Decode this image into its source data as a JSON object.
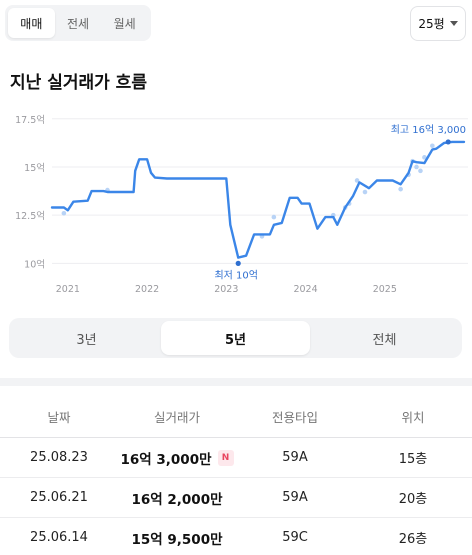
{
  "deal_tabs": [
    {
      "label": "매매",
      "active": true
    },
    {
      "label": "전세",
      "active": false
    },
    {
      "label": "월세",
      "active": false
    }
  ],
  "size_select": {
    "value": "25평"
  },
  "section_title": "지난 실거래가 흐름",
  "chart_data": {
    "type": "line",
    "x_unit": "year",
    "y_unit": "억",
    "y_ticks": [
      {
        "value": 10,
        "label": "10억"
      },
      {
        "value": 12.5,
        "label": "12.5억"
      },
      {
        "value": 15,
        "label": "15억"
      },
      {
        "value": 17.5,
        "label": "17.5억"
      }
    ],
    "x_ticks": [
      {
        "value": 2021,
        "label": "2021"
      },
      {
        "value": 2022,
        "label": "2022"
      },
      {
        "value": 2023,
        "label": "2023"
      },
      {
        "value": 2024,
        "label": "2024"
      },
      {
        "value": 2025,
        "label": "2025"
      }
    ],
    "x_range": [
      2020.8,
      2026.05
    ],
    "y_range": [
      9.5,
      17.8
    ],
    "line_color": "#3b86e8",
    "scatter_color": "#b8d3f6",
    "series": [
      {
        "points": [
          [
            2020.8,
            12.9
          ],
          [
            2020.95,
            12.9
          ],
          [
            2021.0,
            12.75
          ],
          [
            2021.07,
            13.2
          ],
          [
            2021.25,
            13.25
          ],
          [
            2021.3,
            13.75
          ],
          [
            2021.45,
            13.75
          ],
          [
            2021.5,
            13.7
          ],
          [
            2021.83,
            13.7
          ],
          [
            2021.85,
            14.8
          ],
          [
            2021.9,
            15.4
          ],
          [
            2022.0,
            15.4
          ],
          [
            2022.05,
            14.7
          ],
          [
            2022.1,
            14.45
          ],
          [
            2022.25,
            14.4
          ],
          [
            2023.0,
            14.4
          ],
          [
            2023.05,
            12.0
          ],
          [
            2023.15,
            10.3
          ],
          [
            2023.25,
            10.4
          ],
          [
            2023.35,
            11.5
          ],
          [
            2023.5,
            11.5
          ],
          [
            2023.55,
            11.5
          ],
          [
            2023.6,
            12.0
          ],
          [
            2023.7,
            12.1
          ],
          [
            2023.8,
            13.4
          ],
          [
            2023.9,
            13.4
          ],
          [
            2023.95,
            13.1
          ],
          [
            2024.05,
            13.1
          ],
          [
            2024.15,
            11.8
          ],
          [
            2024.25,
            12.4
          ],
          [
            2024.35,
            12.4
          ],
          [
            2024.4,
            12.0
          ],
          [
            2024.5,
            12.9
          ],
          [
            2024.6,
            13.5
          ],
          [
            2024.68,
            14.2
          ],
          [
            2024.8,
            13.9
          ],
          [
            2024.9,
            14.3
          ],
          [
            2025.1,
            14.3
          ],
          [
            2025.2,
            14.1
          ],
          [
            2025.3,
            14.7
          ],
          [
            2025.35,
            15.3
          ],
          [
            2025.4,
            15.25
          ],
          [
            2025.5,
            15.2
          ],
          [
            2025.6,
            15.9
          ],
          [
            2025.65,
            15.95
          ],
          [
            2025.75,
            16.25
          ],
          [
            2025.85,
            16.3
          ],
          [
            2026.0,
            16.3
          ]
        ]
      }
    ],
    "scatter": [
      [
        2020.95,
        12.6
      ],
      [
        2021.5,
        13.8
      ],
      [
        2023.45,
        11.4
      ],
      [
        2023.6,
        12.4
      ],
      [
        2024.35,
        12.5
      ],
      [
        2024.5,
        12.9
      ],
      [
        2024.55,
        13.1
      ],
      [
        2024.65,
        14.3
      ],
      [
        2024.75,
        13.7
      ],
      [
        2025.2,
        13.85
      ],
      [
        2025.3,
        14.6
      ],
      [
        2025.35,
        15.3
      ],
      [
        2025.4,
        15.0
      ],
      [
        2025.45,
        14.8
      ],
      [
        2025.5,
        15.5
      ],
      [
        2025.6,
        16.1
      ]
    ],
    "annotations": {
      "min": {
        "label": "최저 10억",
        "x": 2023.15,
        "y": 10.0
      },
      "max": {
        "label": "최고 16억 3,000",
        "x": 2025.8,
        "y": 16.3
      }
    },
    "grid": true
  },
  "period_options": [
    {
      "label": "3년",
      "active": false
    },
    {
      "label": "5년",
      "active": true
    },
    {
      "label": "전체",
      "active": false
    }
  ],
  "table": {
    "headers": [
      "날짜",
      "실거래가",
      "전용타입",
      "위치"
    ],
    "rows": [
      {
        "date": "25.08.23",
        "price": "16억 3,000만",
        "badge": "N",
        "type": "59A",
        "floor": "15층"
      },
      {
        "date": "25.06.21",
        "price": "16억 2,000만",
        "badge": "",
        "type": "59A",
        "floor": "20층"
      },
      {
        "date": "25.06.14",
        "price": "15억 9,500만",
        "badge": "",
        "type": "59C",
        "floor": "26층"
      }
    ]
  }
}
